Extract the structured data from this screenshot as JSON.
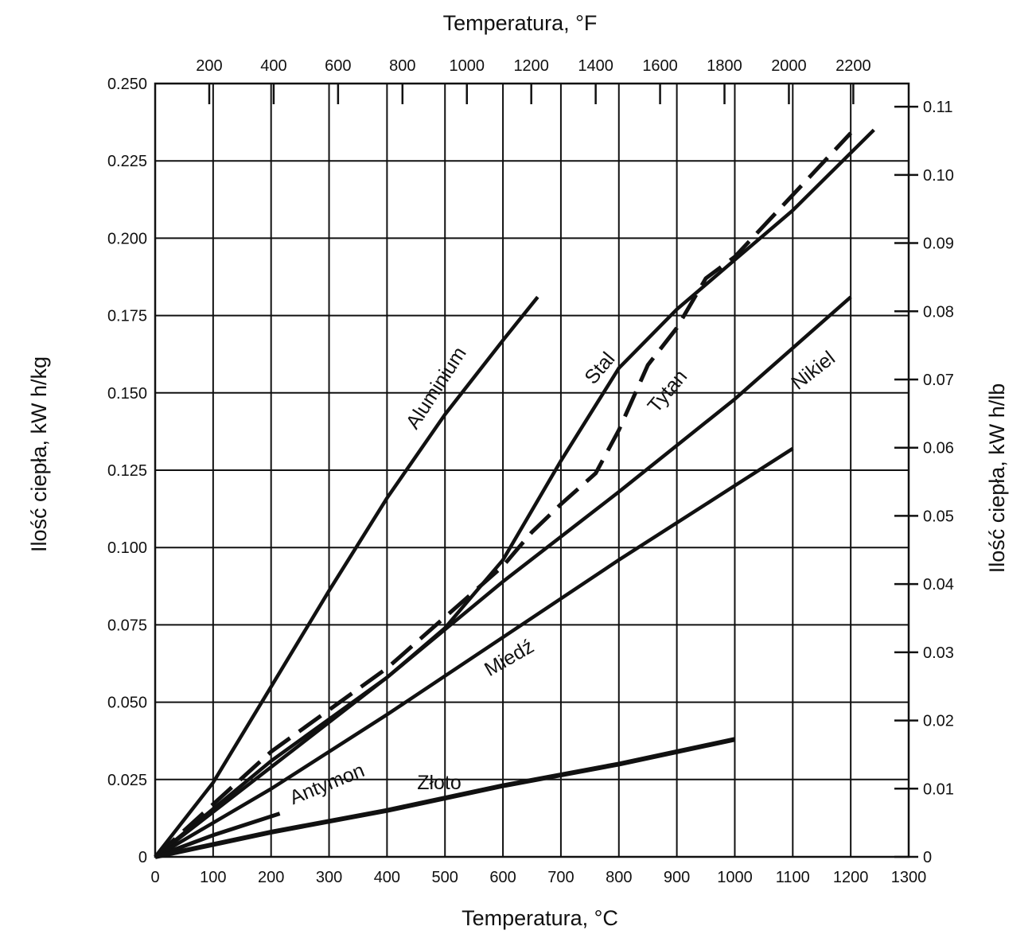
{
  "chart_data": {
    "type": "line",
    "xlabel_bottom": "Temperatura, °C",
    "xlabel_top": "Temperatura, °F",
    "ylabel_left": "Ilość ciepła, kW h/kg",
    "ylabel_right": "Ilość ciepła, kW h/lb",
    "xlim": [
      0,
      1300
    ],
    "ylim": [
      0,
      0.25
    ],
    "grid": true,
    "x_ticks_c": [
      "0",
      "100",
      "200",
      "300",
      "400",
      "500",
      "600",
      "700",
      "800",
      "900",
      "1000",
      "1100",
      "1200",
      "1300"
    ],
    "y_ticks_left": [
      "0",
      "0.025",
      "0.050",
      "0.075",
      "0.100",
      "0.125",
      "0.150",
      "0.175",
      "0.200",
      "0.225",
      "0.250"
    ],
    "x_ticks_f": [
      "200",
      "400",
      "600",
      "800",
      "1000",
      "1200",
      "1400",
      "1600",
      "1800",
      "2000",
      "2200"
    ],
    "y_ticks_right": [
      "0",
      "0.01",
      "0.02",
      "0.03",
      "0.04",
      "0.05",
      "0.06",
      "0.07",
      "0.08",
      "0.09",
      "0.10",
      "0.11"
    ],
    "series": [
      {
        "name": "Aluminium",
        "x": [
          0,
          100,
          200,
          300,
          400,
          500,
          600,
          660
        ],
        "y": [
          0,
          0.024,
          0.055,
          0.086,
          0.116,
          0.143,
          0.167,
          0.181
        ]
      },
      {
        "name": "Stal",
        "x": [
          0,
          200,
          400,
          500,
          600,
          700,
          800,
          900,
          1000,
          1100,
          1240
        ],
        "y": [
          0,
          0.031,
          0.058,
          0.074,
          0.096,
          0.128,
          0.158,
          0.177,
          0.193,
          0.209,
          0.235
        ]
      },
      {
        "name": "Tytan",
        "x": [
          0,
          200,
          400,
          600,
          650,
          700,
          760,
          800,
          850,
          900,
          950,
          1000,
          1200
        ],
        "y": [
          0,
          0.034,
          0.061,
          0.094,
          0.105,
          0.114,
          0.124,
          0.138,
          0.159,
          0.171,
          0.187,
          0.194,
          0.234
        ]
      },
      {
        "name": "Nikiel",
        "x": [
          0,
          200,
          400,
          600,
          800,
          1000,
          1200
        ],
        "y": [
          0,
          0.029,
          0.058,
          0.089,
          0.118,
          0.148,
          0.181
        ]
      },
      {
        "name": "Miedź",
        "x": [
          0,
          200,
          400,
          600,
          800,
          1000,
          1100
        ],
        "y": [
          0,
          0.022,
          0.046,
          0.071,
          0.096,
          0.12,
          0.132
        ]
      },
      {
        "name": "Antymon",
        "x": [
          0,
          100,
          215
        ],
        "y": [
          0,
          0.007,
          0.014
        ]
      },
      {
        "name": "Złoto",
        "x": [
          0,
          200,
          400,
          600,
          800,
          1000
        ],
        "y": [
          0,
          0.008,
          0.015,
          0.023,
          0.03,
          0.038
        ]
      }
    ]
  }
}
